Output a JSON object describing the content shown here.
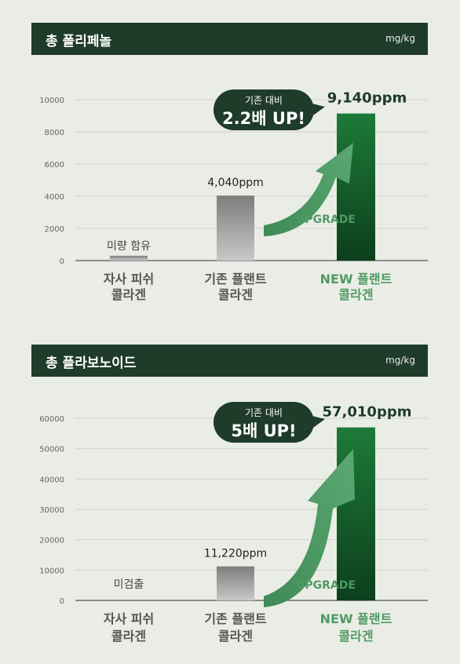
{
  "charts": [
    {
      "header": {
        "title": "총 폴리페놀",
        "unit": "mg/kg"
      },
      "chart_data": {
        "type": "bar",
        "categories": [
          [
            "자사 피쉬",
            "콜라겐"
          ],
          [
            "기존 플랜트",
            "콜라겐"
          ],
          [
            "NEW 플랜트",
            "콜라겐"
          ]
        ],
        "values": [
          300,
          4040,
          9140
        ],
        "value_labels": [
          "미량 함유",
          "4,040ppm",
          "9,140ppm"
        ],
        "yticks": [
          0,
          2000,
          4000,
          6000,
          8000,
          10000
        ],
        "ylim": [
          0,
          10000
        ],
        "grid": true
      },
      "callout": {
        "small": "기존 대비",
        "big": "2.2배 UP!"
      },
      "arrow_label": "UPGRADE"
    },
    {
      "header": {
        "title": "총 플라보노이드",
        "unit": "mg/kg"
      },
      "chart_data": {
        "type": "bar",
        "categories": [
          [
            "자사 피쉬",
            "콜라겐"
          ],
          [
            "기존 플랜트",
            "콜라겐"
          ],
          [
            "NEW 플랜트",
            "콜라겐"
          ]
        ],
        "values": [
          0,
          11220,
          57010
        ],
        "value_labels": [
          "미검출",
          "11,220ppm",
          "57,010ppm"
        ],
        "yticks": [
          0,
          10000,
          20000,
          30000,
          40000,
          50000,
          60000
        ],
        "ylim": [
          0,
          60000
        ],
        "grid": true
      },
      "callout": {
        "small": "기존 대비",
        "big": "5배 UP!"
      },
      "arrow_label": "UPGRADE"
    }
  ],
  "colors": {
    "header": "#1f3b2a",
    "accent": "#4f9a64",
    "new_bar_top": "#1d7a38",
    "new_bar_bottom": "#0d3f1c"
  }
}
